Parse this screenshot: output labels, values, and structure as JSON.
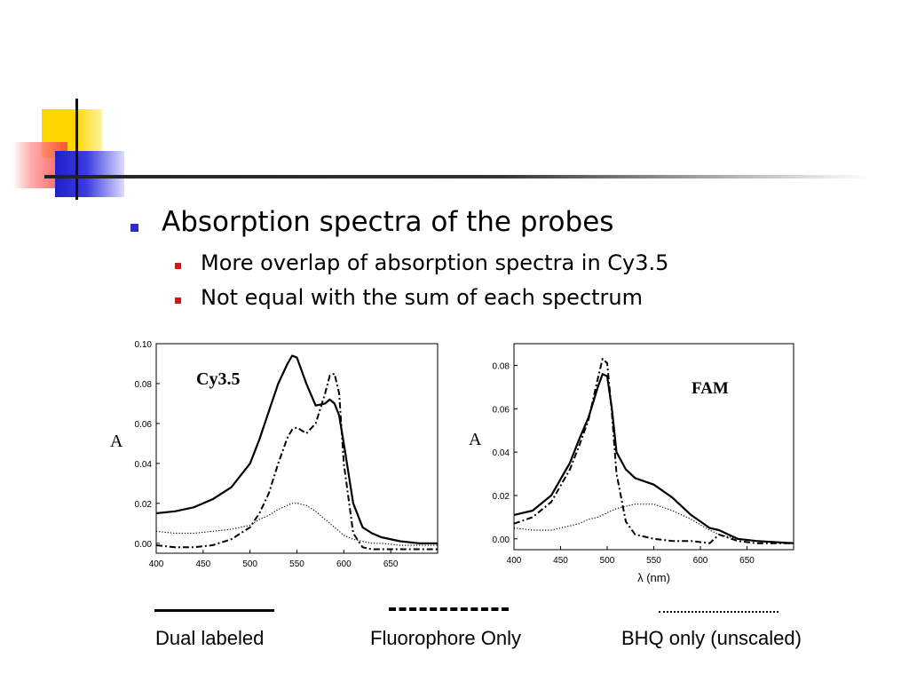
{
  "slide": {
    "bullet_main": "Absorption spectra of the probes",
    "sub_bullets": [
      "More overlap of absorption spectra in Cy3.5",
      "Not equal with the sum of each spectrum"
    ]
  },
  "legend": {
    "items": [
      {
        "label": "Dual labeled",
        "style": "solid"
      },
      {
        "label": "Fluorophore Only",
        "style": "dash-dot"
      },
      {
        "label": "BHQ only (unscaled)",
        "style": "dotted"
      }
    ]
  },
  "colors": {
    "bullet_main": "#2b2bd0",
    "bullet_sub": "#e01010",
    "deco_yellow": "#ffd700",
    "deco_red": "#ff3b3b",
    "deco_blue": "#2020c8"
  },
  "chart_data": [
    {
      "type": "line",
      "title": "Cy3.5",
      "xlabel": "",
      "ylabel": "A",
      "xlim": [
        400,
        700
      ],
      "ylim": [
        -0.005,
        0.1
      ],
      "xticks": [
        "400",
        "450",
        "500",
        "550",
        "600",
        "650"
      ],
      "yticks": [
        "0.00",
        "0.02",
        "0.04",
        "0.06",
        "0.08",
        "0.10"
      ],
      "x": [
        400,
        420,
        440,
        460,
        480,
        500,
        510,
        520,
        530,
        540,
        545,
        550,
        560,
        570,
        580,
        585,
        590,
        595,
        600,
        610,
        620,
        630,
        640,
        660,
        680,
        700
      ],
      "series": [
        {
          "name": "Dual labeled",
          "style": "solid",
          "values": [
            0.015,
            0.016,
            0.018,
            0.022,
            0.028,
            0.04,
            0.052,
            0.066,
            0.08,
            0.09,
            0.094,
            0.093,
            0.08,
            0.069,
            0.07,
            0.072,
            0.07,
            0.064,
            0.05,
            0.02,
            0.008,
            0.005,
            0.003,
            0.001,
            0.0,
            0.0
          ]
        },
        {
          "name": "Fluorophore Only",
          "style": "dash-dot",
          "values": [
            -0.001,
            -0.002,
            -0.002,
            -0.001,
            0.002,
            0.008,
            0.015,
            0.025,
            0.04,
            0.053,
            0.057,
            0.058,
            0.055,
            0.06,
            0.075,
            0.084,
            0.085,
            0.075,
            0.04,
            0.005,
            -0.002,
            -0.003,
            -0.003,
            -0.003,
            -0.003,
            -0.003
          ]
        },
        {
          "name": "BHQ only (unscaled)",
          "style": "dotted",
          "values": [
            0.006,
            0.005,
            0.005,
            0.006,
            0.007,
            0.009,
            0.012,
            0.014,
            0.017,
            0.019,
            0.02,
            0.02,
            0.019,
            0.016,
            0.012,
            0.01,
            0.008,
            0.006,
            0.004,
            0.002,
            0.001,
            0.0,
            0.0,
            -0.001,
            -0.001,
            -0.001
          ]
        }
      ]
    },
    {
      "type": "line",
      "title": "FAM",
      "xlabel": "λ (nm)",
      "ylabel": "A",
      "xlim": [
        400,
        700
      ],
      "ylim": [
        -0.005,
        0.09
      ],
      "xticks": [
        "400",
        "450",
        "500",
        "550",
        "600",
        "650"
      ],
      "yticks": [
        "0.00",
        "0.02",
        "0.04",
        "0.06",
        "0.08"
      ],
      "x": [
        400,
        420,
        440,
        460,
        470,
        480,
        490,
        495,
        500,
        505,
        510,
        520,
        530,
        550,
        570,
        590,
        610,
        620,
        640,
        660,
        700
      ],
      "series": [
        {
          "name": "Dual labeled",
          "style": "solid",
          "values": [
            0.011,
            0.013,
            0.02,
            0.035,
            0.046,
            0.056,
            0.07,
            0.076,
            0.075,
            0.06,
            0.04,
            0.032,
            0.028,
            0.025,
            0.019,
            0.011,
            0.005,
            0.004,
            0.0,
            -0.001,
            -0.002
          ]
        },
        {
          "name": "Fluorophore Only",
          "style": "dash-dot",
          "values": [
            0.007,
            0.01,
            0.017,
            0.032,
            0.043,
            0.055,
            0.074,
            0.083,
            0.081,
            0.058,
            0.03,
            0.008,
            0.002,
            0.0,
            -0.001,
            -0.001,
            -0.002,
            0.002,
            -0.001,
            -0.002,
            -0.002
          ]
        },
        {
          "name": "BHQ only (unscaled)",
          "style": "dotted",
          "values": [
            0.005,
            0.004,
            0.004,
            0.006,
            0.007,
            0.009,
            0.01,
            0.011,
            0.012,
            0.013,
            0.014,
            0.015,
            0.016,
            0.016,
            0.013,
            0.009,
            0.004,
            0.002,
            0.0,
            -0.001,
            -0.002
          ]
        }
      ]
    }
  ]
}
